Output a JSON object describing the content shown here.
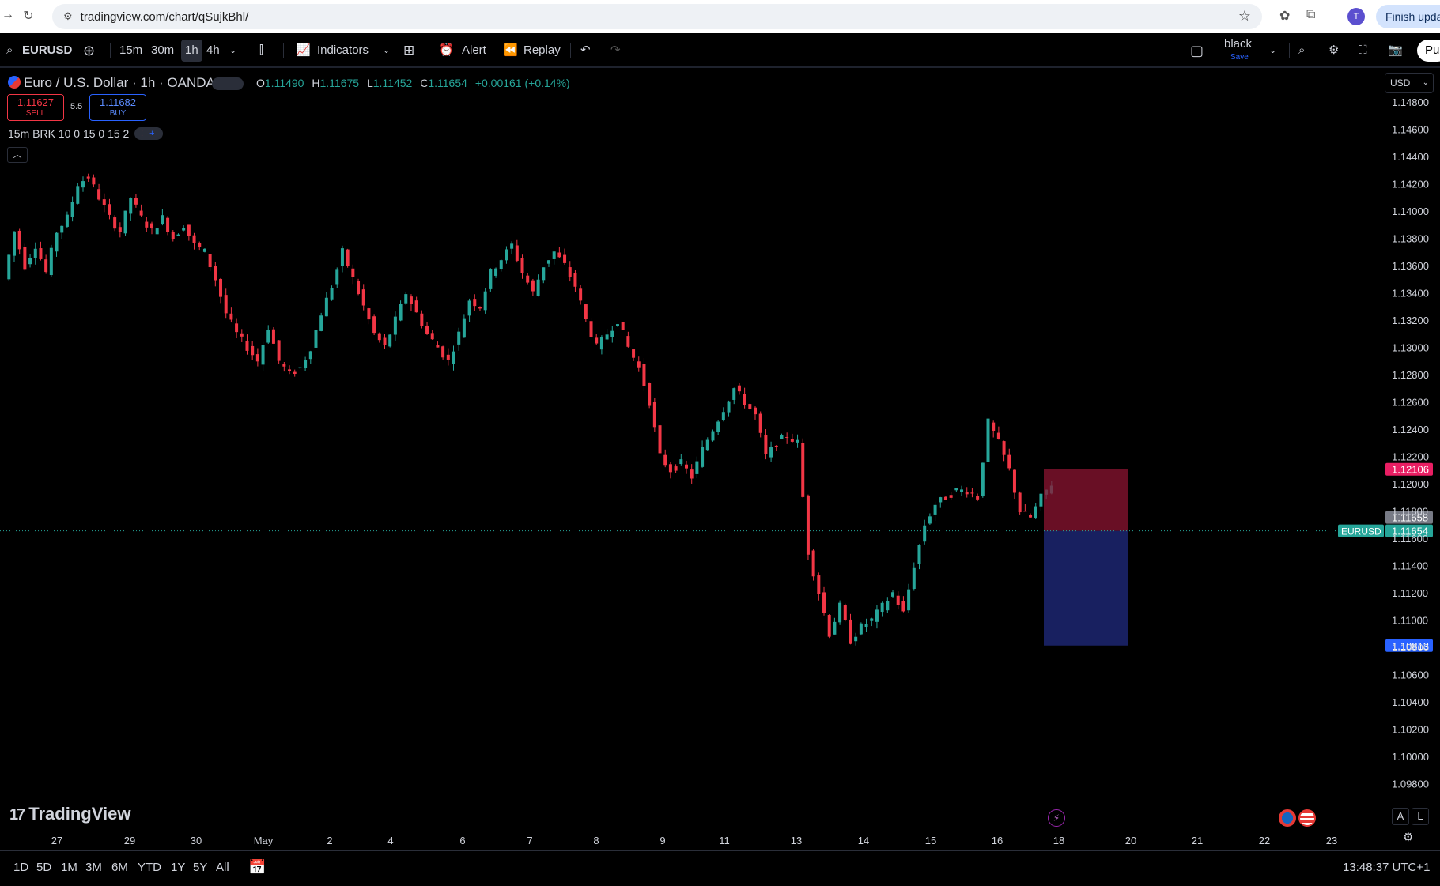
{
  "browser": {
    "url": "tradingview.com/chart/qSujkBhl/",
    "profile_initial": "T",
    "update_button": "Finish update"
  },
  "toolbar": {
    "symbol": "EURUSD",
    "intervals": [
      "15m",
      "30m",
      "1h",
      "4h"
    ],
    "active_interval": "1h",
    "indicators_label": "Indicators",
    "alert_label": "Alert",
    "replay_label": "Replay",
    "theme_name": "black",
    "theme_save": "Save",
    "publish_label": "Publish"
  },
  "legend": {
    "title": "Euro / U.S. Dollar · 1h · OANDA",
    "ohlc": {
      "o_label": "O",
      "o": "1.11490",
      "h_label": "H",
      "h": "1.11675",
      "l_label": "L",
      "l": "1.11452",
      "c_label": "C",
      "c": "1.11654",
      "change": "+0.00161 (+0.14%)"
    },
    "sell_price": "1.11627",
    "sell_label": "SELL",
    "spread": "5.5",
    "buy_price": "1.11682",
    "buy_label": "BUY",
    "indicator": "15m BRK 10 0 15 0 15 2",
    "indicator_warn": "!",
    "indicator_plus": "+",
    "currency": "USD"
  },
  "logo_text": "TradingView",
  "event_icons": [
    "lightning-event",
    "eu-flag",
    "us-flag"
  ],
  "scale_buttons": [
    "A",
    "L"
  ],
  "timeframes": [
    "1D",
    "5D",
    "1M",
    "3M",
    "6M",
    "YTD",
    "1Y",
    "5Y",
    "All"
  ],
  "clock": "13:48:37 UTC+1",
  "chart_data": {
    "type": "candlestick",
    "symbol": "EURUSD",
    "title": "Euro / U.S. Dollar · 1h · OANDA",
    "y_ticks": [
      "1.14800",
      "1.14600",
      "1.14400",
      "1.14200",
      "1.14000",
      "1.13800",
      "1.13600",
      "1.13400",
      "1.13200",
      "1.13000",
      "1.12800",
      "1.12600",
      "1.12400",
      "1.12200",
      "1.12000",
      "1.11800",
      "1.11600",
      "1.11400",
      "1.11200",
      "1.11000",
      "1.10800",
      "1.10600",
      "1.10400",
      "1.10200",
      "1.10000",
      "1.09800"
    ],
    "ylim": [
      1.0975,
      1.1485
    ],
    "x_ticks": [
      "27",
      "29",
      "30",
      "May",
      "2",
      "4",
      "6",
      "7",
      "8",
      "9",
      "11",
      "13",
      "14",
      "15",
      "16",
      "18",
      "20",
      "21",
      "22",
      "23"
    ],
    "x_tick_index": [
      0,
      1,
      2,
      3,
      4,
      5,
      6,
      7,
      8,
      9,
      10,
      11,
      12,
      13,
      14,
      15,
      16,
      17,
      18,
      19
    ],
    "price_path": [
      [
        0,
        1.135
      ],
      [
        2,
        1.1385
      ],
      [
        4,
        1.136
      ],
      [
        6,
        1.1375
      ],
      [
        8,
        1.1355
      ],
      [
        10,
        1.1385
      ],
      [
        12,
        1.1395
      ],
      [
        14,
        1.142
      ],
      [
        16,
        1.1425
      ],
      [
        18,
        1.141
      ],
      [
        20,
        1.1395
      ],
      [
        22,
        1.1385
      ],
      [
        24,
        1.141
      ],
      [
        26,
        1.1395
      ],
      [
        28,
        1.1385
      ],
      [
        30,
        1.1395
      ],
      [
        32,
        1.138
      ],
      [
        34,
        1.139
      ],
      [
        36,
        1.1375
      ],
      [
        38,
        1.137
      ],
      [
        40,
        1.135
      ],
      [
        42,
        1.1325
      ],
      [
        44,
        1.131
      ],
      [
        46,
        1.13
      ],
      [
        48,
        1.129
      ],
      [
        50,
        1.1315
      ],
      [
        52,
        1.129
      ],
      [
        54,
        1.128
      ],
      [
        56,
        1.1285
      ],
      [
        58,
        1.13
      ],
      [
        60,
        1.1325
      ],
      [
        62,
        1.1345
      ],
      [
        64,
        1.137
      ],
      [
        66,
        1.135
      ],
      [
        68,
        1.133
      ],
      [
        70,
        1.131
      ],
      [
        72,
        1.13
      ],
      [
        74,
        1.132
      ],
      [
        76,
        1.134
      ],
      [
        78,
        1.1325
      ],
      [
        80,
        1.131
      ],
      [
        82,
        1.13
      ],
      [
        84,
        1.129
      ],
      [
        86,
        1.131
      ],
      [
        88,
        1.1335
      ],
      [
        90,
        1.133
      ],
      [
        92,
        1.1355
      ],
      [
        94,
        1.1365
      ],
      [
        96,
        1.1375
      ],
      [
        98,
        1.1355
      ],
      [
        100,
        1.134
      ],
      [
        102,
        1.136
      ],
      [
        104,
        1.137
      ],
      [
        106,
        1.136
      ],
      [
        108,
        1.1345
      ],
      [
        110,
        1.132
      ],
      [
        112,
        1.13
      ],
      [
        114,
        1.131
      ],
      [
        116,
        1.132
      ],
      [
        118,
        1.13
      ],
      [
        120,
        1.1285
      ],
      [
        122,
        1.126
      ],
      [
        124,
        1.122
      ],
      [
        126,
        1.121
      ],
      [
        128,
        1.1215
      ],
      [
        130,
        1.1205
      ],
      [
        132,
        1.1225
      ],
      [
        134,
        1.124
      ],
      [
        136,
        1.1255
      ],
      [
        138,
        1.127
      ],
      [
        140,
        1.126
      ],
      [
        142,
        1.125
      ],
      [
        144,
        1.122
      ],
      [
        146,
        1.123
      ],
      [
        148,
        1.1235
      ],
      [
        150,
        1.123
      ],
      [
        152,
        1.115
      ],
      [
        154,
        1.112
      ],
      [
        156,
        1.109
      ],
      [
        158,
        1.111
      ],
      [
        160,
        1.1085
      ],
      [
        162,
        1.1095
      ],
      [
        164,
        1.11
      ],
      [
        166,
        1.111
      ],
      [
        168,
        1.112
      ],
      [
        170,
        1.1105
      ],
      [
        172,
        1.114
      ],
      [
        174,
        1.117
      ],
      [
        176,
        1.1185
      ],
      [
        178,
        1.119
      ],
      [
        180,
        1.1195
      ],
      [
        182,
        1.1195
      ],
      [
        184,
        1.119
      ],
      [
        186,
        1.1245
      ],
      [
        188,
        1.123
      ],
      [
        190,
        1.121
      ],
      [
        192,
        1.118
      ],
      [
        194,
        1.1175
      ],
      [
        196,
        1.119
      ],
      [
        198,
        1.12
      ],
      [
        200,
        1.1205
      ],
      [
        202,
        1.121
      ],
      [
        204,
        1.1195
      ],
      [
        206,
        1.12
      ],
      [
        208,
        1.119
      ],
      [
        210,
        1.1185
      ],
      [
        212,
        1.12
      ],
      [
        214,
        1.1215
      ],
      [
        216,
        1.121
      ],
      [
        218,
        1.1205
      ],
      [
        220,
        1.121
      ],
      [
        222,
        1.1175
      ],
      [
        224,
        1.1145
      ],
      [
        226,
        1.115
      ],
      [
        228,
        1.1165
      ]
    ],
    "last_price": "1.11654",
    "last_label": "EURUSD",
    "high_marker": "1.11658",
    "position": {
      "type": "short",
      "entry": 1.11654,
      "stop": 1.12106,
      "target": 1.10813,
      "stop_label": "1.12106",
      "target_label": "1.10813"
    }
  }
}
